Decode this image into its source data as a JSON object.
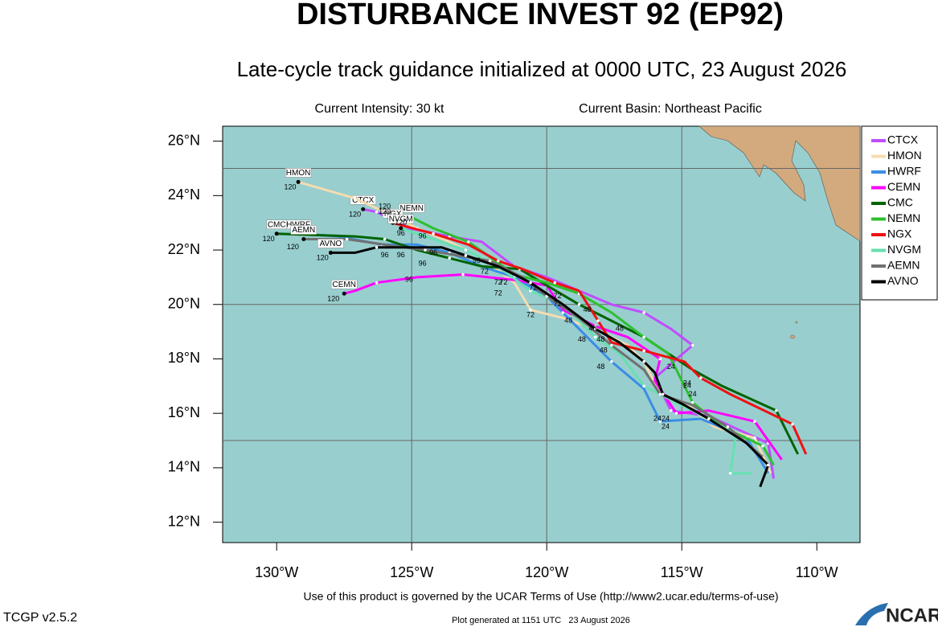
{
  "map": {
    "title": "DISTURBANCE INVEST 92 (EP92)",
    "subtitle": "Late-cycle track guidance initialized at 0000 UTC, 23 August 2026",
    "intensity": "Current Intensity: 30 kt",
    "basin": "Current Basin: Northeast Pacific",
    "terms": "Use of this product is governed by the UCAR Terms of Use (http://www2.ucar.edu/terms-of-use)",
    "version": "TCGP v2.5.2",
    "generated": "Plot generated at 1151 UTC   23 August 2026",
    "logo": "NCAR",
    "xlim": [
      -132,
      -108.4
    ],
    "ylim": [
      11.25,
      26.55
    ],
    "xticks": [
      {
        "value": -130,
        "label": "130°W"
      },
      {
        "value": -125,
        "label": "125°W"
      },
      {
        "value": -120,
        "label": "120°W"
      },
      {
        "value": -115,
        "label": "115°W"
      },
      {
        "value": -110,
        "label": "110°W"
      }
    ],
    "yticks": [
      {
        "value": 12,
        "label": "12°N"
      },
      {
        "value": 14,
        "label": "14°N"
      },
      {
        "value": 16,
        "label": "16°N"
      },
      {
        "value": 18,
        "label": "18°N"
      },
      {
        "value": 20,
        "label": "20°N"
      },
      {
        "value": 22,
        "label": "22°N"
      },
      {
        "value": 24,
        "label": "24°N"
      },
      {
        "value": 26,
        "label": "26°N"
      }
    ],
    "grid_lon": [
      -125,
      -120,
      -115
    ],
    "grid_lat": [
      15,
      20,
      25
    ],
    "tracks": [
      {
        "name": "CTCX",
        "color": "#c04cff",
        "lon": [
          -111.6,
          -111.8,
          -114.0,
          -115.4,
          -116.0,
          -114.6,
          -115.4,
          -116.4,
          -117.6,
          -118.8,
          -120.0,
          -121.2,
          -122.4,
          -123.6,
          -125.1,
          -126.3,
          -126.8
        ],
        "lat": [
          13.6,
          14.9,
          15.9,
          16.1,
          17.3,
          18.5,
          19.1,
          19.7,
          20.0,
          20.5,
          21.0,
          21.4,
          22.3,
          22.5,
          22.8,
          23.4,
          23.5
        ]
      },
      {
        "name": "HMON",
        "color": "#f5dcb0",
        "lon": [
          -111.7,
          -112.3,
          -113.8,
          -114.9,
          -115.8,
          -116.4,
          -117.0,
          -118.2,
          -119.4,
          -120.6,
          -121.2,
          -122.4,
          -123.6,
          -124.8,
          -126.0,
          -127.1,
          -129.2
        ],
        "lat": [
          13.8,
          15.1,
          15.5,
          16.4,
          16.7,
          17.9,
          18.5,
          19.1,
          19.5,
          19.8,
          20.8,
          21.7,
          22.3,
          22.8,
          23.4,
          23.9,
          24.5
        ]
      },
      {
        "name": "HWRF",
        "color": "#3a8ee6",
        "lon": [
          -111.8,
          -112.6,
          -114.3,
          -115.8,
          -116.4,
          -117.6,
          -118.5,
          -119.4,
          -120.0,
          -121.2,
          -122.4,
          -123.6,
          -124.8,
          -126.1,
          -127.7,
          -129.2
        ],
        "lat": [
          13.8,
          15.1,
          15.8,
          15.7,
          16.9,
          17.9,
          18.8,
          19.7,
          20.3,
          21.0,
          21.4,
          21.9,
          22.2,
          22.2,
          22.5,
          22.6
        ]
      },
      {
        "name": "CEMN",
        "color": "#ff00ff",
        "lon": [
          -111.3,
          -112.3,
          -114.0,
          -115.2,
          -116.0,
          -115.8,
          -117.0,
          -118.2,
          -119.4,
          -120.0,
          -121.2,
          -123.1,
          -124.8,
          -126.3,
          -127.1,
          -127.5
        ],
        "lat": [
          14.3,
          15.7,
          16.1,
          16.0,
          17.2,
          18.0,
          18.8,
          19.2,
          19.8,
          20.7,
          20.9,
          21.1,
          21.0,
          20.8,
          20.5,
          20.4
        ]
      },
      {
        "name": "CMC",
        "color": "#006400",
        "lon": [
          -110.7,
          -111.5,
          -113.5,
          -114.6,
          -115.5,
          -116.4,
          -117.6,
          -118.8,
          -120.0,
          -121.0,
          -122.4,
          -123.6,
          -124.8,
          -126.0,
          -127.1,
          -130.0
        ],
        "lat": [
          14.5,
          16.1,
          17.0,
          17.6,
          18.2,
          18.8,
          19.4,
          20.0,
          20.7,
          21.3,
          21.4,
          21.7,
          22.0,
          22.4,
          22.5,
          22.6
        ]
      },
      {
        "name": "NEMN",
        "color": "#2ec02e",
        "lon": [
          -111.6,
          -112.0,
          -113.5,
          -114.6,
          -115.5,
          -116.4,
          -117.6,
          -118.8,
          -120.0,
          -121.2,
          -121.9,
          -122.9,
          -124.2,
          -125.0
        ],
        "lat": [
          14.1,
          14.8,
          15.5,
          16.4,
          18.2,
          18.8,
          19.7,
          20.4,
          20.8,
          21.1,
          21.6,
          22.3,
          22.8,
          23.2
        ]
      },
      {
        "name": "NGX",
        "color": "#ee1111",
        "lon": [
          -110.4,
          -110.9,
          -113.2,
          -114.3,
          -114.9,
          -116.4,
          -117.6,
          -118.1,
          -118.8,
          -119.7,
          -120.9,
          -121.8,
          -122.9,
          -124.2,
          -125.7
        ],
        "lat": [
          14.5,
          15.6,
          16.7,
          17.3,
          17.9,
          18.3,
          18.6,
          19.4,
          20.5,
          20.8,
          21.3,
          21.6,
          22.2,
          22.6,
          23.0
        ]
      },
      {
        "name": "NVGM",
        "color": "#66e0b0",
        "lon": [
          -112.4,
          -113.2,
          -113.0,
          -114.0,
          -115.2,
          -116.4,
          -117.3,
          -118.2,
          -119.4,
          -120.6,
          -121.8,
          -123.0,
          -124.2,
          -125.4
        ],
        "lat": [
          13.8,
          13.8,
          15.2,
          15.8,
          16.4,
          17.0,
          18.2,
          18.8,
          20.0,
          20.5,
          21.4,
          22.0,
          22.4,
          22.8
        ]
      },
      {
        "name": "AEMN",
        "color": "#707070",
        "lon": [
          -112.0,
          -113.3,
          -114.6,
          -115.8,
          -116.4,
          -117.6,
          -118.8,
          -120.0,
          -120.9,
          -122.1,
          -123.3,
          -124.5,
          -126.0,
          -127.4,
          -129.0
        ],
        "lat": [
          14.4,
          15.5,
          16.3,
          16.7,
          17.6,
          18.5,
          19.5,
          20.3,
          21.0,
          21.6,
          21.8,
          22.0,
          22.2,
          22.4,
          22.4
        ]
      },
      {
        "name": "AVNO",
        "color": "#000000",
        "lon": [
          -112.1,
          -111.8,
          -112.6,
          -114.0,
          -114.9,
          -115.7,
          -116.0,
          -116.4,
          -117.3,
          -118.2,
          -119.4,
          -120.6,
          -121.8,
          -123.0,
          -123.9,
          -126.3,
          -127.1,
          -128.0
        ],
        "lat": [
          13.3,
          14.1,
          14.9,
          15.8,
          16.3,
          16.7,
          17.5,
          17.9,
          18.6,
          19.1,
          20.0,
          20.8,
          21.4,
          21.8,
          22.1,
          22.1,
          21.9,
          21.9
        ]
      }
    ],
    "hour_labels": [
      {
        "lon": -115.4,
        "lat": 17.7,
        "text": 24
      },
      {
        "lon": -114.8,
        "lat": 17.1,
        "text": 24
      },
      {
        "lon": -114.8,
        "lat": 17.0,
        "text": 24
      },
      {
        "lon": -114.6,
        "lat": 16.7,
        "text": 24
      },
      {
        "lon": -115.9,
        "lat": 15.8,
        "text": 24
      },
      {
        "lon": -115.6,
        "lat": 15.8,
        "text": 24
      },
      {
        "lon": -115.6,
        "lat": 15.5,
        "text": 24
      },
      {
        "lon": -118.5,
        "lat": 19.8,
        "text": 48
      },
      {
        "lon": -119.2,
        "lat": 19.4,
        "text": 48
      },
      {
        "lon": -118.7,
        "lat": 18.7,
        "text": 48
      },
      {
        "lon": -118.3,
        "lat": 19.1,
        "text": 48
      },
      {
        "lon": -118.0,
        "lat": 18.7,
        "text": 48
      },
      {
        "lon": -117.3,
        "lat": 19.1,
        "text": 48
      },
      {
        "lon": -117.9,
        "lat": 18.3,
        "text": 48
      },
      {
        "lon": -118.0,
        "lat": 17.7,
        "text": 48
      },
      {
        "lon": -120.5,
        "lat": 20.6,
        "text": 72
      },
      {
        "lon": -121.8,
        "lat": 20.8,
        "text": 72
      },
      {
        "lon": -121.8,
        "lat": 20.4,
        "text": 72
      },
      {
        "lon": -122.3,
        "lat": 21.2,
        "text": 72
      },
      {
        "lon": -121.6,
        "lat": 20.8,
        "text": 72
      },
      {
        "lon": -119.6,
        "lat": 20.0,
        "text": 72
      },
      {
        "lon": -119.6,
        "lat": 20.3,
        "text": 72
      },
      {
        "lon": -120.6,
        "lat": 19.6,
        "text": 72
      },
      {
        "lon": -124.6,
        "lat": 22.5,
        "text": 96
      },
      {
        "lon": -126.0,
        "lat": 21.8,
        "text": 96
      },
      {
        "lon": -125.4,
        "lat": 21.8,
        "text": 96
      },
      {
        "lon": -124.6,
        "lat": 21.5,
        "text": 96
      },
      {
        "lon": -124.2,
        "lat": 21.9,
        "text": 96
      },
      {
        "lon": -125.1,
        "lat": 20.9,
        "text": 96
      },
      {
        "lon": -122.6,
        "lat": 21.6,
        "text": 96
      },
      {
        "lon": -125.4,
        "lat": 22.6,
        "text": 96
      },
      {
        "lon": -129.5,
        "lat": 24.3,
        "text": 120
      },
      {
        "lon": -127.1,
        "lat": 23.3,
        "text": 120
      },
      {
        "lon": -130.3,
        "lat": 22.4,
        "text": 120
      },
      {
        "lon": -129.4,
        "lat": 22.1,
        "text": 120
      },
      {
        "lon": -128.3,
        "lat": 21.7,
        "text": 120
      },
      {
        "lon": -127.9,
        "lat": 20.2,
        "text": 120
      },
      {
        "lon": -126.0,
        "lat": 23.4,
        "text": 120
      },
      {
        "lon": -126.0,
        "lat": 23.6,
        "text": 120
      },
      {
        "lon": -125.4,
        "lat": 23.0,
        "text": 120
      }
    ]
  }
}
